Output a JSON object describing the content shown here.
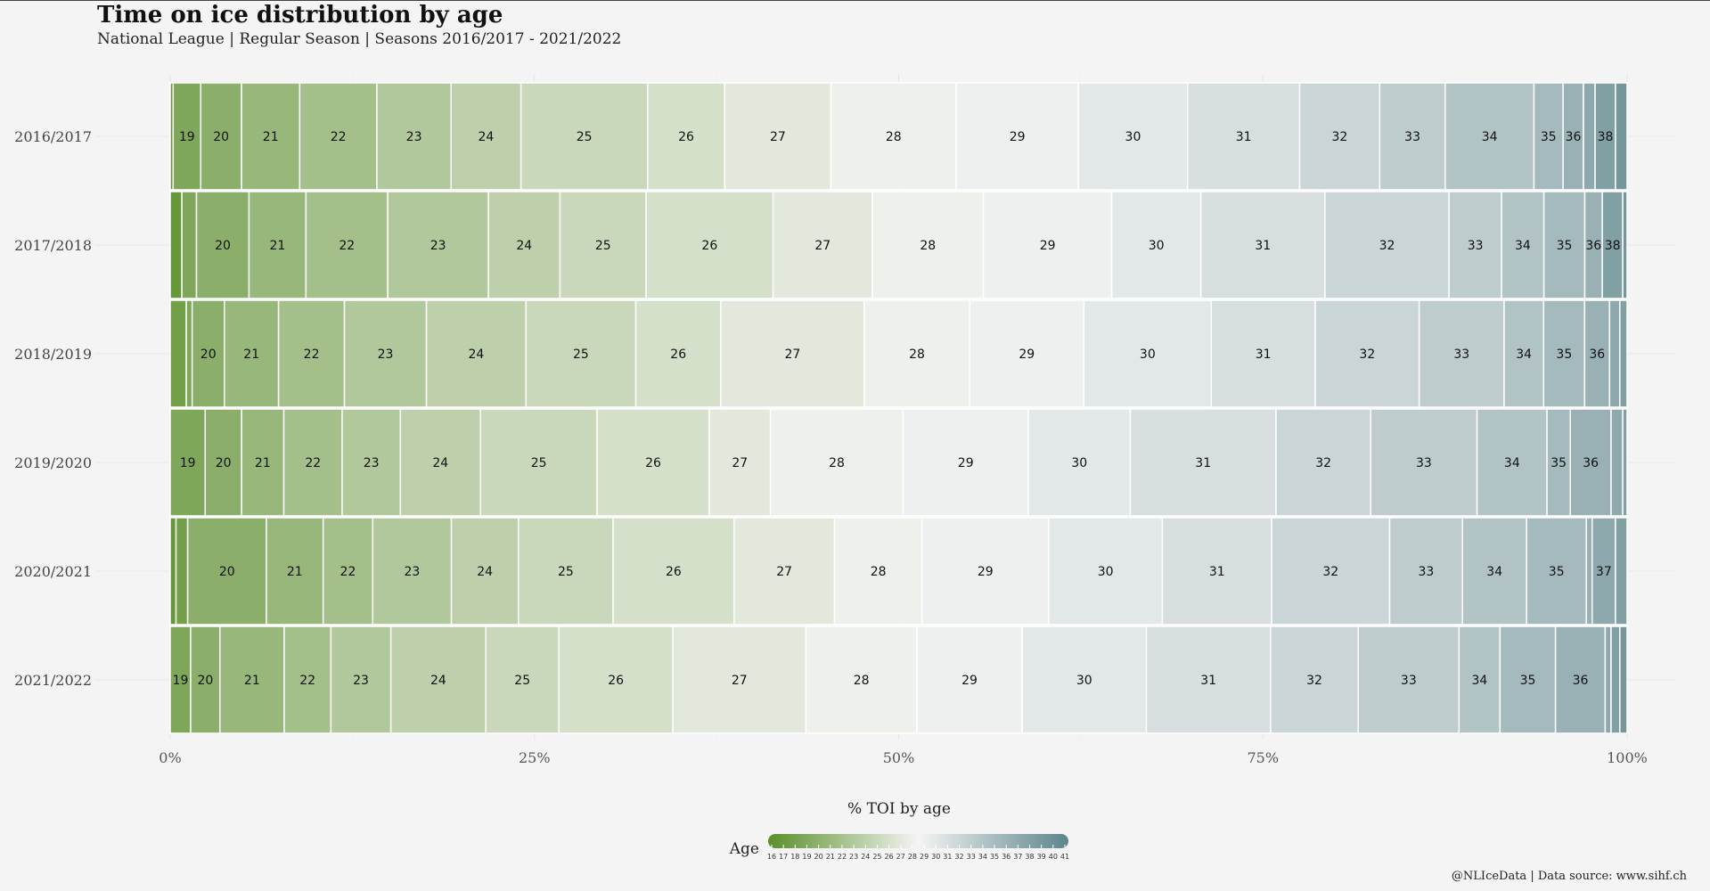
{
  "title": "Time on ice distribution by age",
  "subtitle": "National League | Regular Season | Seasons 2016/2017 - 2021/2022",
  "caption": "@NLIceData | Data source: www.sihf.ch",
  "colors": {
    "low": "#5a8f29",
    "mid": "#f4f4f4",
    "high": "#5d858b",
    "background": "#f4f4f4",
    "border": "#ffffff"
  },
  "chart_data": {
    "type": "bar",
    "orientation": "horizontal-stacked-percent",
    "categories": [
      "2016/2017",
      "2017/2018",
      "2018/2019",
      "2019/2020",
      "2020/2021",
      "2021/2022"
    ],
    "xlabel": "% TOI by age",
    "xlim": [
      0,
      100
    ],
    "x_ticks": [
      "0%",
      "25%",
      "50%",
      "75%",
      "100%"
    ],
    "grid": true,
    "legend": {
      "title": "Age",
      "position": "bottom",
      "min": 16,
      "max": 41,
      "ticks": [
        16,
        17,
        18,
        19,
        20,
        21,
        22,
        23,
        24,
        25,
        26,
        27,
        28,
        29,
        30,
        31,
        32,
        33,
        34,
        35,
        36,
        37,
        38,
        39,
        40,
        41
      ]
    },
    "series": [
      {
        "season": "2016/2017",
        "segments": [
          {
            "age": 17,
            "value": 0.2
          },
          {
            "age": 19,
            "value": 1.9
          },
          {
            "age": 20,
            "value": 2.8
          },
          {
            "age": 21,
            "value": 4.0
          },
          {
            "age": 22,
            "value": 5.3
          },
          {
            "age": 23,
            "value": 5.1
          },
          {
            "age": 24,
            "value": 4.8
          },
          {
            "age": 25,
            "value": 8.7
          },
          {
            "age": 26,
            "value": 5.3
          },
          {
            "age": 27,
            "value": 7.3
          },
          {
            "age": 28,
            "value": 8.6
          },
          {
            "age": 29,
            "value": 8.4
          },
          {
            "age": 30,
            "value": 7.5
          },
          {
            "age": 31,
            "value": 7.7
          },
          {
            "age": 32,
            "value": 5.5
          },
          {
            "age": 33,
            "value": 4.5
          },
          {
            "age": 34,
            "value": 6.1
          },
          {
            "age": 35,
            "value": 2.0
          },
          {
            "age": 36,
            "value": 1.4
          },
          {
            "age": 37,
            "value": 0.8
          },
          {
            "age": 38,
            "value": 1.4
          },
          {
            "age": 39,
            "value": 0.8
          }
        ]
      },
      {
        "season": "2017/2018",
        "segments": [
          {
            "age": 17,
            "value": 0.8
          },
          {
            "age": 19,
            "value": 1.0
          },
          {
            "age": 20,
            "value": 3.6
          },
          {
            "age": 21,
            "value": 3.9
          },
          {
            "age": 22,
            "value": 5.6
          },
          {
            "age": 23,
            "value": 6.9
          },
          {
            "age": 24,
            "value": 4.9
          },
          {
            "age": 25,
            "value": 5.9
          },
          {
            "age": 26,
            "value": 8.7
          },
          {
            "age": 27,
            "value": 6.8
          },
          {
            "age": 28,
            "value": 7.6
          },
          {
            "age": 29,
            "value": 8.8
          },
          {
            "age": 30,
            "value": 6.1
          },
          {
            "age": 31,
            "value": 8.5
          },
          {
            "age": 32,
            "value": 8.5
          },
          {
            "age": 33,
            "value": 3.6
          },
          {
            "age": 34,
            "value": 2.9
          },
          {
            "age": 35,
            "value": 2.8
          },
          {
            "age": 36,
            "value": 1.2
          },
          {
            "age": 38,
            "value": 1.4
          },
          {
            "age": 39,
            "value": 0.3
          }
        ]
      },
      {
        "season": "2018/2019",
        "segments": [
          {
            "age": 18,
            "value": 1.1
          },
          {
            "age": 19,
            "value": 0.4
          },
          {
            "age": 20,
            "value": 2.2
          },
          {
            "age": 21,
            "value": 3.7
          },
          {
            "age": 22,
            "value": 4.5
          },
          {
            "age": 23,
            "value": 5.6
          },
          {
            "age": 24,
            "value": 6.8
          },
          {
            "age": 25,
            "value": 7.5
          },
          {
            "age": 26,
            "value": 5.8
          },
          {
            "age": 27,
            "value": 9.8
          },
          {
            "age": 28,
            "value": 7.2
          },
          {
            "age": 29,
            "value": 7.8
          },
          {
            "age": 30,
            "value": 8.7
          },
          {
            "age": 31,
            "value": 7.1
          },
          {
            "age": 32,
            "value": 7.1
          },
          {
            "age": 33,
            "value": 5.8
          },
          {
            "age": 34,
            "value": 2.7
          },
          {
            "age": 35,
            "value": 2.8
          },
          {
            "age": 36,
            "value": 1.7
          },
          {
            "age": 37,
            "value": 0.7
          },
          {
            "age": 38,
            "value": 0.5
          }
        ]
      },
      {
        "season": "2019/2020",
        "segments": [
          {
            "age": 19,
            "value": 2.4
          },
          {
            "age": 20,
            "value": 2.5
          },
          {
            "age": 21,
            "value": 2.9
          },
          {
            "age": 22,
            "value": 4.0
          },
          {
            "age": 23,
            "value": 4.0
          },
          {
            "age": 24,
            "value": 5.5
          },
          {
            "age": 25,
            "value": 8.0
          },
          {
            "age": 26,
            "value": 7.7
          },
          {
            "age": 27,
            "value": 4.2
          },
          {
            "age": 28,
            "value": 9.1
          },
          {
            "age": 29,
            "value": 8.6
          },
          {
            "age": 30,
            "value": 7.0
          },
          {
            "age": 31,
            "value": 10.0
          },
          {
            "age": 32,
            "value": 6.5
          },
          {
            "age": 33,
            "value": 7.3
          },
          {
            "age": 34,
            "value": 4.8
          },
          {
            "age": 35,
            "value": 1.6
          },
          {
            "age": 36,
            "value": 2.8
          },
          {
            "age": 37,
            "value": 0.8
          },
          {
            "age": 38,
            "value": 0.3
          }
        ]
      },
      {
        "season": "2020/2021",
        "segments": [
          {
            "age": 17,
            "value": 0.4
          },
          {
            "age": 18,
            "value": 0.8
          },
          {
            "age": 20,
            "value": 5.4
          },
          {
            "age": 21,
            "value": 3.9
          },
          {
            "age": 22,
            "value": 3.4
          },
          {
            "age": 23,
            "value": 5.4
          },
          {
            "age": 24,
            "value": 4.6
          },
          {
            "age": 25,
            "value": 6.5
          },
          {
            "age": 26,
            "value": 8.3
          },
          {
            "age": 27,
            "value": 6.9
          },
          {
            "age": 28,
            "value": 6.0
          },
          {
            "age": 29,
            "value": 8.7
          },
          {
            "age": 30,
            "value": 7.8
          },
          {
            "age": 31,
            "value": 7.5
          },
          {
            "age": 32,
            "value": 8.1
          },
          {
            "age": 33,
            "value": 5.0
          },
          {
            "age": 34,
            "value": 4.4
          },
          {
            "age": 35,
            "value": 4.1
          },
          {
            "age": 36,
            "value": 0.4
          },
          {
            "age": 37,
            "value": 1.6
          },
          {
            "age": 38,
            "value": 0.8
          }
        ]
      },
      {
        "season": "2021/2022",
        "segments": [
          {
            "age": 19,
            "value": 1.4
          },
          {
            "age": 20,
            "value": 2.0
          },
          {
            "age": 21,
            "value": 4.4
          },
          {
            "age": 22,
            "value": 3.2
          },
          {
            "age": 23,
            "value": 4.1
          },
          {
            "age": 24,
            "value": 6.5
          },
          {
            "age": 25,
            "value": 5.0
          },
          {
            "age": 26,
            "value": 7.8
          },
          {
            "age": 27,
            "value": 9.1
          },
          {
            "age": 28,
            "value": 7.6
          },
          {
            "age": 29,
            "value": 7.2
          },
          {
            "age": 30,
            "value": 8.5
          },
          {
            "age": 31,
            "value": 8.5
          },
          {
            "age": 32,
            "value": 6.0
          },
          {
            "age": 33,
            "value": 6.9
          },
          {
            "age": 34,
            "value": 2.8
          },
          {
            "age": 35,
            "value": 3.8
          },
          {
            "age": 36,
            "value": 3.4
          },
          {
            "age": 37,
            "value": 0.4
          },
          {
            "age": 38,
            "value": 0.6
          },
          {
            "age": 39,
            "value": 0.5
          }
        ]
      }
    ]
  }
}
